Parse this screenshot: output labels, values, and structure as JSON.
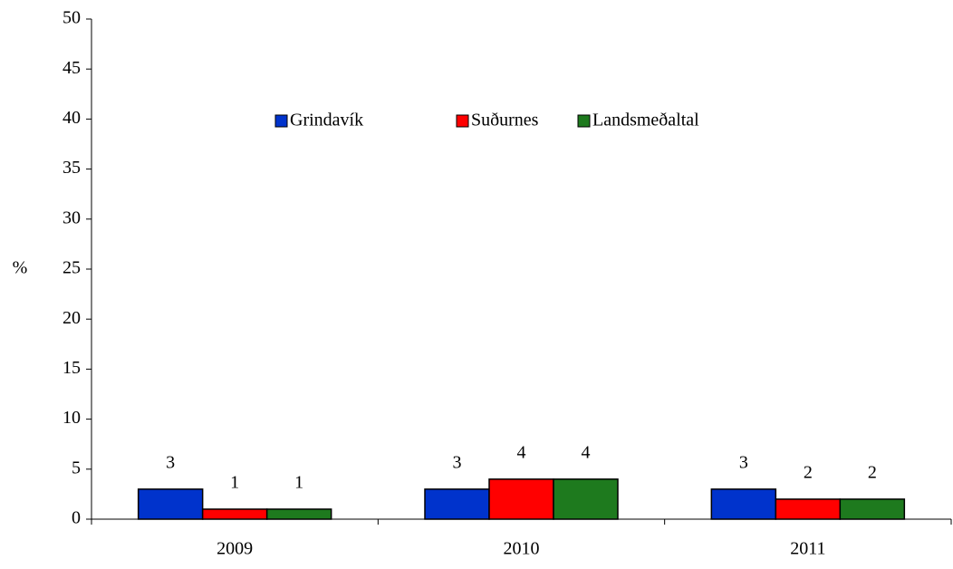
{
  "chart_data": {
    "type": "bar",
    "categories": [
      "2009",
      "2010",
      "2011"
    ],
    "series": [
      {
        "name": "Grindavík",
        "color": "#0033cc",
        "values": [
          3,
          3,
          3
        ]
      },
      {
        "name": "Suðurnes",
        "color": "#ff0000",
        "values": [
          1,
          4,
          2
        ]
      },
      {
        "name": "Landsmeðaltal",
        "color": "#1e7a1e",
        "values": [
          1,
          4,
          2
        ]
      }
    ],
    "ylabel": "%",
    "ylim": [
      0,
      50
    ],
    "yticks": [
      0,
      5,
      10,
      15,
      20,
      25,
      30,
      35,
      40,
      45,
      50
    ],
    "grid": false,
    "legend": "top"
  }
}
